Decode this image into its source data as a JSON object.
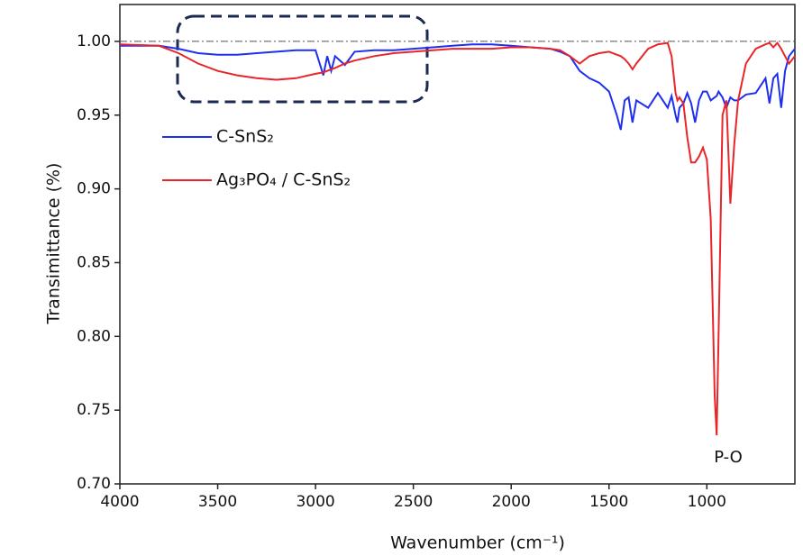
{
  "chart_data": {
    "type": "line",
    "xlabel": "Wavenumber (cm⁻¹)",
    "ylabel": "Transimittance (%)",
    "annotations": [
      "P-O"
    ],
    "x": [
      4000,
      3800,
      3700,
      3600,
      3500,
      3400,
      3300,
      3200,
      3100,
      3000,
      2960,
      2940,
      2920,
      2900,
      2850,
      2800,
      2700,
      2600,
      2500,
      2400,
      2300,
      2200,
      2100,
      2000,
      1900,
      1800,
      1750,
      1700,
      1650,
      1600,
      1550,
      1500,
      1460,
      1440,
      1420,
      1400,
      1380,
      1360,
      1300,
      1250,
      1200,
      1180,
      1160,
      1150,
      1140,
      1120,
      1100,
      1080,
      1060,
      1040,
      1020,
      1000,
      980,
      960,
      950,
      940,
      920,
      900,
      880,
      860,
      840,
      800,
      750,
      700,
      680,
      660,
      640,
      620,
      600,
      580,
      550
    ],
    "series": [
      {
        "name": "C-SnS₂",
        "color": "#1f2ff0",
        "values": [
          0.997,
          0.997,
          0.995,
          0.992,
          0.991,
          0.991,
          0.992,
          0.993,
          0.994,
          0.994,
          0.977,
          0.99,
          0.98,
          0.99,
          0.984,
          0.993,
          0.994,
          0.994,
          0.995,
          0.996,
          0.997,
          0.998,
          0.998,
          0.997,
          0.996,
          0.995,
          0.993,
          0.99,
          0.98,
          0.975,
          0.972,
          0.966,
          0.95,
          0.94,
          0.96,
          0.962,
          0.945,
          0.96,
          0.955,
          0.965,
          0.955,
          0.963,
          0.95,
          0.945,
          0.955,
          0.958,
          0.965,
          0.958,
          0.945,
          0.96,
          0.966,
          0.966,
          0.96,
          0.962,
          0.963,
          0.966,
          0.962,
          0.955,
          0.962,
          0.96,
          0.96,
          0.964,
          0.965,
          0.975,
          0.958,
          0.975,
          0.978,
          0.955,
          0.98,
          0.99,
          0.995
        ]
      },
      {
        "name": "Ag₃PO₄ /  C-SnS₂",
        "color": "#e8262a",
        "values": [
          0.998,
          0.997,
          0.992,
          0.985,
          0.98,
          0.977,
          0.975,
          0.974,
          0.975,
          0.978,
          0.979,
          0.98,
          0.981,
          0.982,
          0.985,
          0.987,
          0.99,
          0.992,
          0.993,
          0.994,
          0.995,
          0.995,
          0.995,
          0.996,
          0.996,
          0.995,
          0.994,
          0.99,
          0.985,
          0.99,
          0.992,
          0.993,
          0.991,
          0.99,
          0.988,
          0.985,
          0.981,
          0.985,
          0.995,
          0.998,
          0.999,
          0.99,
          0.965,
          0.96,
          0.962,
          0.958,
          0.935,
          0.918,
          0.918,
          0.922,
          0.928,
          0.92,
          0.88,
          0.76,
          0.733,
          0.8,
          0.95,
          0.96,
          0.89,
          0.93,
          0.96,
          0.985,
          0.995,
          0.998,
          0.999,
          0.996,
          0.999,
          0.995,
          0.99,
          0.985,
          0.99
        ]
      }
    ],
    "xlim": [
      4000,
      550
    ],
    "ylim": [
      0.7,
      1.025
    ],
    "xticks": [
      4000,
      3500,
      3000,
      2500,
      2000,
      1500,
      1000
    ],
    "yticks": [
      {
        "value": 0.7,
        "label": "0.70"
      },
      0.75,
      {
        "value": 0.8,
        "label": "0.80"
      },
      0.85,
      {
        "value": 0.9,
        "label": "0.90"
      },
      0.95,
      {
        "value": 1.0,
        "label": "1.00"
      }
    ],
    "reference_line": 1.0
  }
}
